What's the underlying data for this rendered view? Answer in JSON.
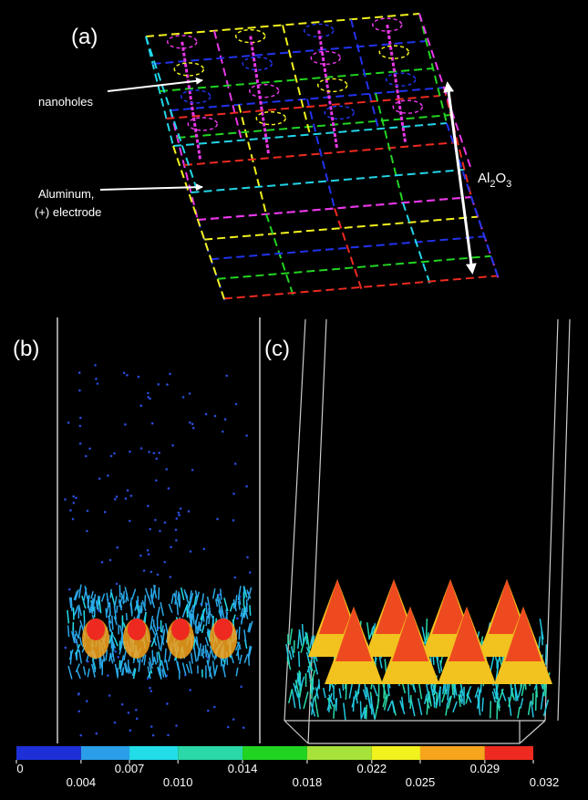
{
  "panels": {
    "a": {
      "label": "(a)",
      "nanoholes": "nanoholes",
      "aluminum": [
        "Aluminum,",
        "(+) electrode"
      ],
      "oxide": [
        "Al",
        "2",
        "O",
        "3"
      ]
    },
    "b": {
      "label": "(b)"
    },
    "c": {
      "label": "(c)"
    }
  },
  "colorbar": {
    "ticks": [
      0,
      0.004,
      0.007,
      {
        "value": 0.01,
        "label": "0.010"
      },
      0.014,
      0.018,
      0.022,
      0.025,
      0.029,
      0.032
    ],
    "colors": [
      "#1d2fd6",
      "#2a9ee8",
      "#22dde8",
      "#2ad8a8",
      "#22d422",
      "#a6e23a",
      "#f2f21e",
      "#f7a51c",
      "#ee2a20"
    ]
  }
}
